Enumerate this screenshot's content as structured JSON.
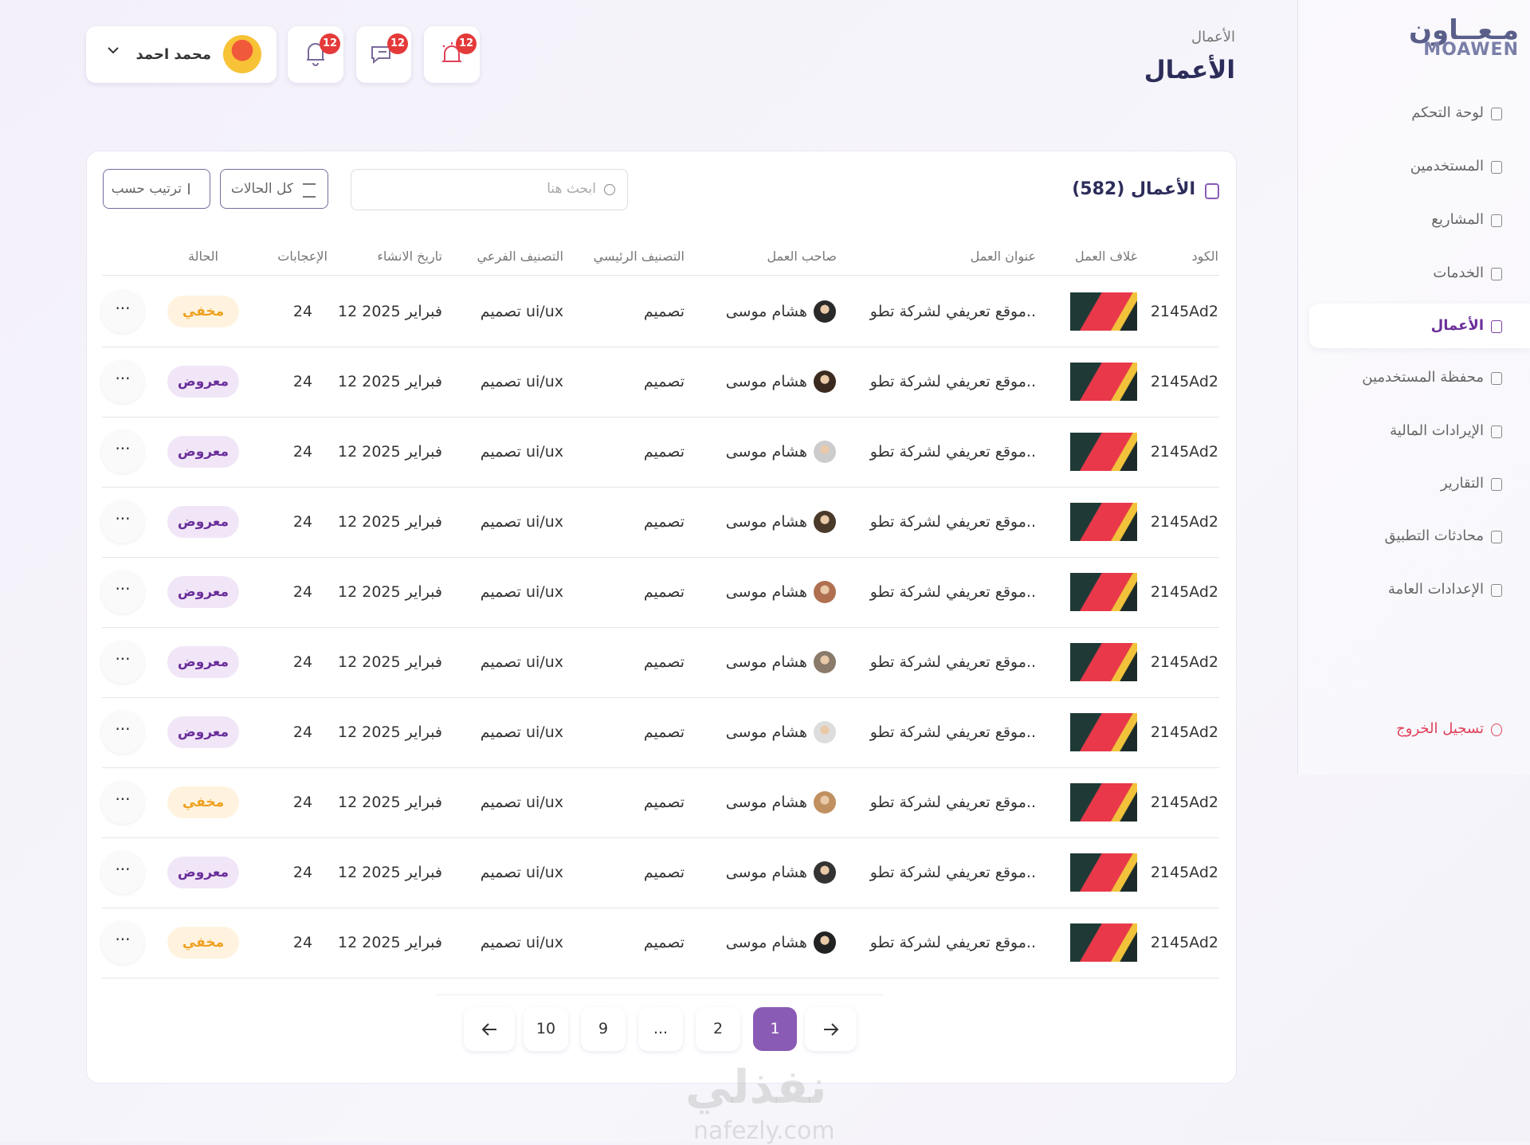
{
  "logo": {
    "ar": "مـعــاون",
    "en": "MOAWEN"
  },
  "sidebar": {
    "items": [
      "لوحة التحكم",
      "المستخدمين",
      "المشاريع",
      "الخدمات",
      "الأعمال",
      "محفظة المستخدمين",
      "الإيرادات المالية",
      "التقارير",
      "محادثات التطبيق",
      "الإعدادات العامة"
    ],
    "active": "الأعمال",
    "logout": "تسجيل الخروج"
  },
  "header": {
    "breadcrumb": "الأعمال",
    "title": "الأعمال",
    "user": "محمد احمد",
    "badges": [
      12,
      12,
      12
    ]
  },
  "card": {
    "title": "الأعمال (582)",
    "search_placeholder": "ابحث هنا",
    "filter": "كل الحالات",
    "sort": "ترتيب حسب"
  },
  "table": {
    "columns": [
      "الكود",
      "غلاف العمل",
      "عنوان العمل",
      "صاحب العمل",
      "التصنيف الرئيسي",
      "التصنيف الفرعي",
      "تاريخ الانشاء",
      "الإعجابات",
      "الحالة"
    ],
    "rows": [
      {
        "code": "2145Ad2",
        "title": "موقع تعريفي لشركة تطو..",
        "owner": "هشام موسى",
        "main": "تصميم",
        "sub": "تصميم ui/ux",
        "date": "12 فبراير 2025",
        "likes": 24,
        "status": "مخفي"
      },
      {
        "code": "2145Ad2",
        "title": "موقع تعريفي لشركة تطو..",
        "owner": "هشام موسى",
        "main": "تصميم",
        "sub": "تصميم ui/ux",
        "date": "12 فبراير 2025",
        "likes": 24,
        "status": "معروض"
      },
      {
        "code": "2145Ad2",
        "title": "موقع تعريفي لشركة تطو..",
        "owner": "هشام موسى",
        "main": "تصميم",
        "sub": "تصميم ui/ux",
        "date": "12 فبراير 2025",
        "likes": 24,
        "status": "معروض"
      },
      {
        "code": "2145Ad2",
        "title": "موقع تعريفي لشركة تطو..",
        "owner": "هشام موسى",
        "main": "تصميم",
        "sub": "تصميم ui/ux",
        "date": "12 فبراير 2025",
        "likes": 24,
        "status": "معروض"
      },
      {
        "code": "2145Ad2",
        "title": "موقع تعريفي لشركة تطو..",
        "owner": "هشام موسى",
        "main": "تصميم",
        "sub": "تصميم ui/ux",
        "date": "12 فبراير 2025",
        "likes": 24,
        "status": "معروض"
      },
      {
        "code": "2145Ad2",
        "title": "موقع تعريفي لشركة تطو..",
        "owner": "هشام موسى",
        "main": "تصميم",
        "sub": "تصميم ui/ux",
        "date": "12 فبراير 2025",
        "likes": 24,
        "status": "معروض"
      },
      {
        "code": "2145Ad2",
        "title": "موقع تعريفي لشركة تطو..",
        "owner": "هشام موسى",
        "main": "تصميم",
        "sub": "تصميم ui/ux",
        "date": "12 فبراير 2025",
        "likes": 24,
        "status": "معروض"
      },
      {
        "code": "2145Ad2",
        "title": "موقع تعريفي لشركة تطو..",
        "owner": "هشام موسى",
        "main": "تصميم",
        "sub": "تصميم ui/ux",
        "date": "12 فبراير 2025",
        "likes": 24,
        "status": "مخفي"
      },
      {
        "code": "2145Ad2",
        "title": "موقع تعريفي لشركة تطو..",
        "owner": "هشام موسى",
        "main": "تصميم",
        "sub": "تصميم ui/ux",
        "date": "12 فبراير 2025",
        "likes": 24,
        "status": "معروض"
      },
      {
        "code": "2145Ad2",
        "title": "موقع تعريفي لشركة تطو..",
        "owner": "هشام موسى",
        "main": "تصميم",
        "sub": "تصميم ui/ux",
        "date": "12 فبراير 2025",
        "likes": 24,
        "status": "مخفي"
      }
    ]
  },
  "pagination": {
    "pages": [
      "1",
      "2",
      "...",
      "9",
      "10"
    ],
    "current": "1"
  },
  "watermark": {
    "ar": "نفذلي",
    "en": "nafezly.com"
  }
}
